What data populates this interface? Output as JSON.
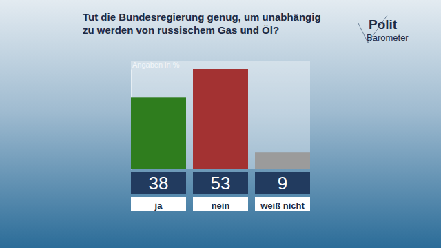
{
  "chart_data": {
    "type": "bar",
    "title": "Tut die Bundesregierung genug, um unabhängig zu werden von russischem Gas und Öl?",
    "subtitle": "Angaben in %",
    "annotations": [
      "Polit",
      "Barometer"
    ],
    "categories": [
      "ja",
      "nein",
      "weiß nicht"
    ],
    "values": [
      38,
      53,
      9
    ],
    "colors": [
      "#2f7d1e",
      "#a33232",
      "#9b9b9b"
    ],
    "ylim": [
      0,
      53
    ],
    "yticks": [],
    "grid": false,
    "data_labels": true,
    "tick_labels": "x"
  }
}
